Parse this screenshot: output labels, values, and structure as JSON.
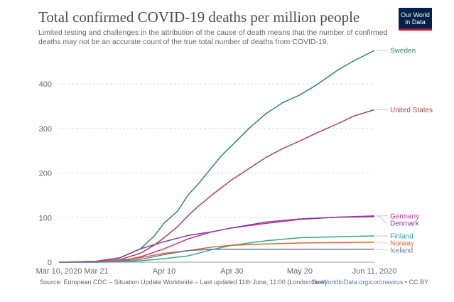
{
  "header": {
    "title": "Total confirmed COVID-19 deaths per million people",
    "subtitle": "Limited testing and challenges in the attribution of the cause of death means that the number of confirmed deaths may not be an accurate count of the true total number of deaths from COVID-19.",
    "logo_line1": "Our World",
    "logo_line2": "in Data"
  },
  "footer": {
    "source": "Source: European CDC – Situation Update Worldwide – Last updated 11th June, 11:00 (London time)",
    "url": "OurWorldInData.org/coronavirus",
    "license": " • CC BY"
  },
  "chart_data": {
    "type": "line",
    "title": "Total confirmed COVID-19 deaths per million people",
    "xlabel": "",
    "ylabel": "",
    "x_ticks": [
      "Mar 10, 2020",
      "Mar 21",
      "Apr 10",
      "Apr 30",
      "May 20",
      "Jun 11, 2020"
    ],
    "y_ticks": [
      0,
      100,
      200,
      300,
      400
    ],
    "xlim": [
      "2020-03-10",
      "2020-06-11"
    ],
    "ylim": [
      0,
      475
    ],
    "grid": true,
    "legend": "right, labels at line ends",
    "series": [
      {
        "name": "Sweden",
        "color": "#2e8b57",
        "x": [
          "2020-03-10",
          "2020-03-21",
          "2020-03-28",
          "2020-04-03",
          "2020-04-07",
          "2020-04-10",
          "2020-04-14",
          "2020-04-17",
          "2020-04-20",
          "2020-04-24",
          "2020-04-27",
          "2020-04-30",
          "2020-05-05",
          "2020-05-10",
          "2020-05-15",
          "2020-05-20",
          "2020-05-25",
          "2020-05-31",
          "2020-06-05",
          "2020-06-11"
        ],
        "y": [
          0,
          2,
          10,
          30,
          58,
          88,
          115,
          150,
          175,
          212,
          240,
          262,
          300,
          333,
          358,
          375,
          398,
          430,
          452,
          475
        ]
      },
      {
        "name": "United States",
        "color": "#a2484e",
        "x": [
          "2020-03-10",
          "2020-03-21",
          "2020-03-28",
          "2020-04-03",
          "2020-04-07",
          "2020-04-10",
          "2020-04-14",
          "2020-04-17",
          "2020-04-20",
          "2020-04-24",
          "2020-04-27",
          "2020-04-30",
          "2020-05-05",
          "2020-05-10",
          "2020-05-15",
          "2020-05-20",
          "2020-05-25",
          "2020-05-31",
          "2020-06-05",
          "2020-06-11"
        ],
        "y": [
          0,
          1,
          6,
          20,
          38,
          55,
          80,
          104,
          125,
          150,
          168,
          185,
          210,
          235,
          255,
          272,
          290,
          310,
          328,
          342
        ]
      },
      {
        "name": "Germany",
        "color": "#c2348e",
        "x": [
          "2020-03-10",
          "2020-03-21",
          "2020-03-28",
          "2020-04-03",
          "2020-04-10",
          "2020-04-17",
          "2020-04-24",
          "2020-04-30",
          "2020-05-10",
          "2020-05-20",
          "2020-05-31",
          "2020-06-11"
        ],
        "y": [
          0,
          0.5,
          3,
          12,
          30,
          52,
          68,
          77,
          87,
          96,
          101,
          104
        ]
      },
      {
        "name": "Denmark",
        "color": "#7d3ea3",
        "x": [
          "2020-03-10",
          "2020-03-21",
          "2020-03-28",
          "2020-04-03",
          "2020-04-10",
          "2020-04-17",
          "2020-04-24",
          "2020-04-30",
          "2020-05-10",
          "2020-05-20",
          "2020-05-31",
          "2020-06-11"
        ],
        "y": [
          0,
          2,
          10,
          30,
          46,
          60,
          68,
          77,
          90,
          97,
          101,
          102
        ]
      },
      {
        "name": "Finland",
        "color": "#3aa39a",
        "x": [
          "2020-03-10",
          "2020-03-21",
          "2020-03-28",
          "2020-04-03",
          "2020-04-10",
          "2020-04-17",
          "2020-04-24",
          "2020-04-30",
          "2020-05-10",
          "2020-05-20",
          "2020-05-31",
          "2020-06-11"
        ],
        "y": [
          0,
          0,
          1,
          3,
          8,
          14,
          28,
          38,
          48,
          55,
          57,
          59
        ]
      },
      {
        "name": "Norway",
        "color": "#d46a2a",
        "x": [
          "2020-03-10",
          "2020-03-21",
          "2020-03-28",
          "2020-04-03",
          "2020-04-10",
          "2020-04-17",
          "2020-04-24",
          "2020-04-30",
          "2020-05-10",
          "2020-05-20",
          "2020-05-31",
          "2020-06-11"
        ],
        "y": [
          0,
          1,
          5,
          10,
          20,
          26,
          34,
          38,
          41,
          43,
          44,
          45
        ]
      },
      {
        "name": "Iceland",
        "color": "#6b7a99",
        "x": [
          "2020-03-10",
          "2020-03-21",
          "2020-03-28",
          "2020-04-03",
          "2020-04-10",
          "2020-04-17",
          "2020-04-24",
          "2020-04-30",
          "2020-05-10",
          "2020-05-20",
          "2020-05-31",
          "2020-06-11"
        ],
        "y": [
          0,
          0,
          3,
          6,
          17,
          26,
          29,
          29,
          29,
          29,
          29,
          29
        ]
      }
    ]
  }
}
